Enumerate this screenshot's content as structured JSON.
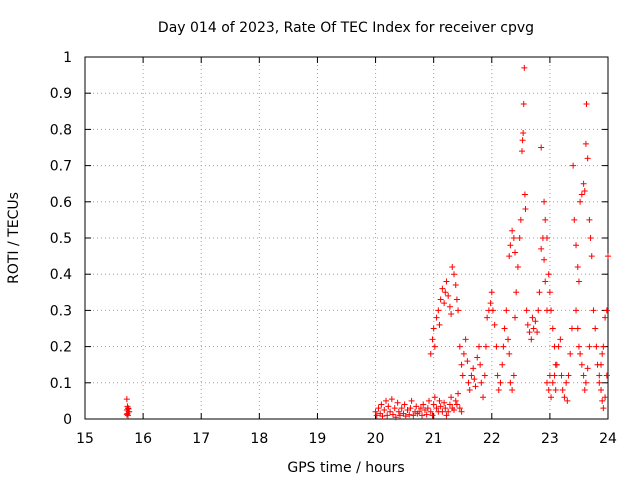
{
  "chart_data": {
    "type": "scatter",
    "title": "Day 014 of 2023, Rate Of TEC Index for receiver cpvg",
    "xlabel": "GPS time / hours",
    "ylabel": "ROTI / TECUs",
    "xlim": [
      15,
      24
    ],
    "ylim": [
      0,
      1
    ],
    "x_ticks": [
      15,
      16,
      17,
      18,
      19,
      20,
      21,
      22,
      23,
      24
    ],
    "x_tick_labels": [
      "15",
      "16",
      "17",
      "18",
      "19",
      "20",
      "21",
      "22",
      "23",
      "24"
    ],
    "y_ticks": [
      0,
      0.1,
      0.2,
      0.3,
      0.4,
      0.5,
      0.6,
      0.7,
      0.8,
      0.9,
      1
    ],
    "y_tick_labels": [
      "0",
      "0.1",
      "0.2",
      "0.3",
      "0.4",
      "0.5",
      "0.6",
      "0.7",
      "0.8",
      "0.9",
      "1"
    ],
    "grid": true,
    "marker": "plus",
    "marker_color": "#ff0000",
    "series": [
      {
        "points": [
          [
            15.72,
            0.055
          ],
          [
            15.73,
            0.035
          ],
          [
            15.74,
            0.03
          ],
          [
            15.72,
            0.025
          ],
          [
            15.75,
            0.02
          ],
          [
            15.73,
            0.015
          ],
          [
            15.74,
            0.01
          ],
          [
            15.76,
            0.02
          ],
          [
            15.72,
            0.012
          ],
          [
            15.75,
            0.028
          ],
          [
            20.0,
            0.02
          ],
          [
            20.02,
            0.01
          ],
          [
            20.05,
            0.03
          ],
          [
            20.08,
            0.015
          ],
          [
            20.1,
            0.04
          ],
          [
            20.12,
            0.008
          ],
          [
            20.15,
            0.025
          ],
          [
            20.18,
            0.05
          ],
          [
            20.2,
            0.01
          ],
          [
            20.22,
            0.035
          ],
          [
            20.25,
            0.02
          ],
          [
            20.28,
            0.055
          ],
          [
            20.3,
            0.012
          ],
          [
            20.33,
            0.03
          ],
          [
            20.35,
            0.005
          ],
          [
            20.38,
            0.045
          ],
          [
            20.4,
            0.02
          ],
          [
            20.42,
            0.01
          ],
          [
            20.45,
            0.03
          ],
          [
            20.48,
            0.015
          ],
          [
            20.5,
            0.04
          ],
          [
            20.52,
            0.008
          ],
          [
            20.55,
            0.025
          ],
          [
            20.58,
            0.012
          ],
          [
            20.6,
            0.03
          ],
          [
            20.62,
            0.05
          ],
          [
            20.65,
            0.01
          ],
          [
            20.68,
            0.02
          ],
          [
            20.7,
            0.035
          ],
          [
            20.72,
            0.015
          ],
          [
            20.75,
            0.02
          ],
          [
            20.78,
            0.03
          ],
          [
            20.8,
            0.01
          ],
          [
            20.82,
            0.04
          ],
          [
            20.85,
            0.025
          ],
          [
            20.88,
            0.012
          ],
          [
            20.9,
            0.03
          ],
          [
            20.92,
            0.05
          ],
          [
            20.95,
            0.02
          ],
          [
            20.98,
            0.01
          ],
          [
            21.0,
            0.04
          ],
          [
            21.02,
            0.06
          ],
          [
            21.05,
            0.03
          ],
          [
            21.08,
            0.02
          ],
          [
            21.1,
            0.05
          ],
          [
            21.12,
            0.035
          ],
          [
            21.15,
            0.02
          ],
          [
            21.18,
            0.045
          ],
          [
            21.2,
            0.03
          ],
          [
            21.22,
            0.01
          ],
          [
            21.25,
            0.02
          ],
          [
            21.28,
            0.04
          ],
          [
            21.3,
            0.06
          ],
          [
            21.32,
            0.03
          ],
          [
            21.35,
            0.025
          ],
          [
            21.38,
            0.05
          ],
          [
            21.4,
            0.04
          ],
          [
            21.42,
            0.07
          ],
          [
            21.45,
            0.03
          ],
          [
            21.48,
            0.02
          ],
          [
            20.95,
            0.18
          ],
          [
            20.98,
            0.22
          ],
          [
            21.0,
            0.25
          ],
          [
            21.02,
            0.2
          ],
          [
            21.05,
            0.28
          ],
          [
            21.08,
            0.3
          ],
          [
            21.1,
            0.26
          ],
          [
            21.12,
            0.33
          ],
          [
            21.15,
            0.36
          ],
          [
            21.18,
            0.32
          ],
          [
            21.2,
            0.35
          ],
          [
            21.22,
            0.38
          ],
          [
            21.25,
            0.34
          ],
          [
            21.28,
            0.31
          ],
          [
            21.3,
            0.29
          ],
          [
            21.32,
            0.42
          ],
          [
            21.35,
            0.4
          ],
          [
            21.38,
            0.37
          ],
          [
            21.4,
            0.33
          ],
          [
            21.42,
            0.3
          ],
          [
            21.45,
            0.2
          ],
          [
            21.48,
            0.15
          ],
          [
            21.5,
            0.12
          ],
          [
            21.52,
            0.18
          ],
          [
            21.55,
            0.22
          ],
          [
            21.58,
            0.16
          ],
          [
            21.6,
            0.1
          ],
          [
            21.62,
            0.08
          ],
          [
            21.65,
            0.12
          ],
          [
            21.68,
            0.14
          ],
          [
            21.7,
            0.11
          ],
          [
            21.72,
            0.09
          ],
          [
            21.75,
            0.17
          ],
          [
            21.78,
            0.2
          ],
          [
            21.8,
            0.15
          ],
          [
            21.82,
            0.1
          ],
          [
            21.85,
            0.06
          ],
          [
            21.88,
            0.12
          ],
          [
            21.9,
            0.2
          ],
          [
            21.92,
            0.28
          ],
          [
            21.95,
            0.3
          ],
          [
            21.98,
            0.32
          ],
          [
            22.0,
            0.35
          ],
          [
            22.02,
            0.3
          ],
          [
            22.05,
            0.26
          ],
          [
            22.08,
            0.2
          ],
          [
            22.1,
            0.12
          ],
          [
            22.12,
            0.08
          ],
          [
            22.15,
            0.1
          ],
          [
            22.18,
            0.15
          ],
          [
            22.2,
            0.2
          ],
          [
            22.22,
            0.25
          ],
          [
            22.25,
            0.3
          ],
          [
            22.28,
            0.22
          ],
          [
            22.3,
            0.18
          ],
          [
            22.32,
            0.1
          ],
          [
            22.35,
            0.08
          ],
          [
            22.38,
            0.12
          ],
          [
            22.4,
            0.28
          ],
          [
            22.42,
            0.35
          ],
          [
            22.45,
            0.42
          ],
          [
            22.48,
            0.5
          ],
          [
            22.5,
            0.55
          ],
          [
            22.52,
            0.74
          ],
          [
            22.53,
            0.77
          ],
          [
            22.54,
            0.79
          ],
          [
            22.55,
            0.87
          ],
          [
            22.56,
            0.97
          ],
          [
            22.57,
            0.62
          ],
          [
            22.58,
            0.58
          ],
          [
            22.3,
            0.45
          ],
          [
            22.32,
            0.48
          ],
          [
            22.35,
            0.52
          ],
          [
            22.38,
            0.5
          ],
          [
            22.4,
            0.46
          ],
          [
            22.6,
            0.3
          ],
          [
            22.62,
            0.26
          ],
          [
            22.65,
            0.24
          ],
          [
            22.68,
            0.22
          ],
          [
            22.7,
            0.28
          ],
          [
            22.72,
            0.25
          ],
          [
            22.75,
            0.27
          ],
          [
            22.78,
            0.24
          ],
          [
            22.8,
            0.3
          ],
          [
            22.82,
            0.35
          ],
          [
            22.85,
            0.47
          ],
          [
            22.88,
            0.5
          ],
          [
            22.9,
            0.44
          ],
          [
            22.92,
            0.38
          ],
          [
            22.95,
            0.3
          ],
          [
            22.85,
            0.75
          ],
          [
            22.9,
            0.6
          ],
          [
            22.92,
            0.55
          ],
          [
            22.95,
            0.5
          ],
          [
            22.98,
            0.4
          ],
          [
            23.0,
            0.35
          ],
          [
            23.02,
            0.3
          ],
          [
            23.05,
            0.25
          ],
          [
            23.08,
            0.2
          ],
          [
            23.1,
            0.15
          ],
          [
            22.95,
            0.1
          ],
          [
            22.98,
            0.08
          ],
          [
            23.0,
            0.12
          ],
          [
            23.02,
            0.06
          ],
          [
            23.05,
            0.1
          ],
          [
            23.08,
            0.12
          ],
          [
            23.1,
            0.08
          ],
          [
            23.12,
            0.15
          ],
          [
            23.15,
            0.2
          ],
          [
            23.18,
            0.22
          ],
          [
            23.2,
            0.12
          ],
          [
            23.22,
            0.08
          ],
          [
            23.25,
            0.06
          ],
          [
            23.28,
            0.1
          ],
          [
            23.3,
            0.05
          ],
          [
            23.32,
            0.12
          ],
          [
            23.35,
            0.18
          ],
          [
            23.38,
            0.25
          ],
          [
            23.4,
            0.7
          ],
          [
            23.42,
            0.55
          ],
          [
            23.45,
            0.48
          ],
          [
            23.48,
            0.42
          ],
          [
            23.5,
            0.38
          ],
          [
            23.52,
            0.6
          ],
          [
            23.55,
            0.62
          ],
          [
            23.58,
            0.65
          ],
          [
            23.6,
            0.63
          ],
          [
            23.62,
            0.76
          ],
          [
            23.63,
            0.87
          ],
          [
            23.65,
            0.72
          ],
          [
            23.68,
            0.55
          ],
          [
            23.7,
            0.5
          ],
          [
            23.72,
            0.45
          ],
          [
            23.75,
            0.3
          ],
          [
            23.78,
            0.25
          ],
          [
            23.8,
            0.2
          ],
          [
            23.82,
            0.15
          ],
          [
            23.85,
            0.1
          ],
          [
            23.88,
            0.08
          ],
          [
            23.9,
            0.05
          ],
          [
            23.92,
            0.03
          ],
          [
            23.95,
            0.06
          ],
          [
            23.98,
            0.12
          ],
          [
            24.0,
            0.45
          ],
          [
            23.98,
            0.3
          ],
          [
            23.95,
            0.28
          ],
          [
            23.92,
            0.2
          ],
          [
            23.9,
            0.18
          ],
          [
            23.88,
            0.15
          ],
          [
            23.85,
            0.12
          ],
          [
            23.45,
            0.3
          ],
          [
            23.48,
            0.25
          ],
          [
            23.5,
            0.2
          ],
          [
            23.52,
            0.18
          ],
          [
            23.55,
            0.15
          ],
          [
            23.58,
            0.12
          ],
          [
            23.6,
            0.08
          ],
          [
            23.62,
            0.1
          ],
          [
            23.65,
            0.14
          ],
          [
            23.68,
            0.2
          ]
        ]
      }
    ]
  }
}
